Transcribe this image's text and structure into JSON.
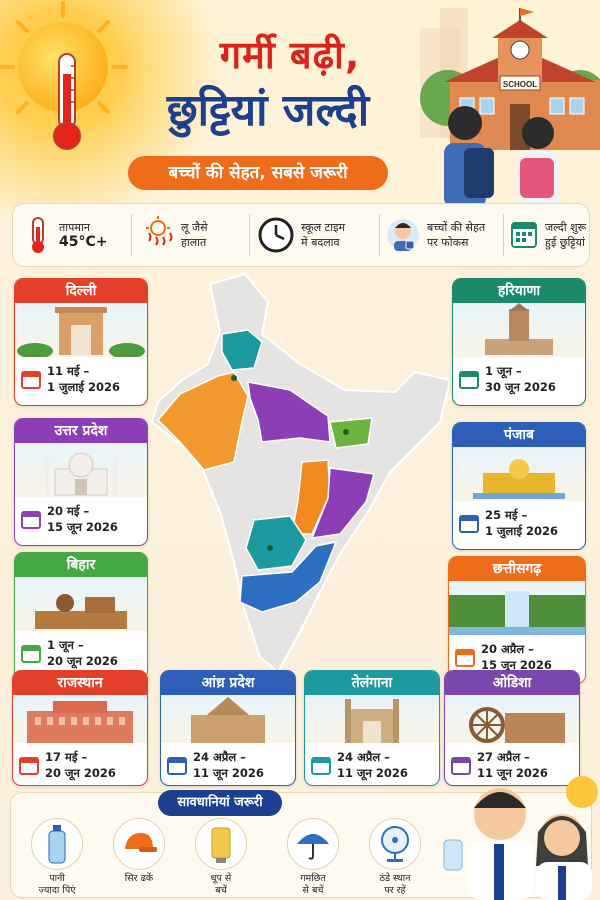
{
  "header": {
    "title_line1": "गर्मी बढ़ी,",
    "title_line2": "छुट्टियां जल्दी",
    "subtitle": "बच्चों की सेहत, सबसे जरूरी",
    "school_sign": "SCHOOL"
  },
  "info_strip": [
    {
      "icon": "thermometer-icon",
      "line1": "तापमान",
      "line2": "45°C+"
    },
    {
      "icon": "heatwave-icon",
      "line1": "लू जैसे",
      "line2": "हालात"
    },
    {
      "icon": "clock-icon",
      "line1": "स्कूल टाइम",
      "line2": "में बदलाव"
    },
    {
      "icon": "child-health-icon",
      "line1": "बच्चों की सेहत",
      "line2": "पर फोकस"
    },
    {
      "icon": "calendar-icon",
      "line1": "जल्दी शुरू",
      "line2": "हुई छुट्टियां"
    }
  ],
  "states": [
    {
      "name": "दिल्ली",
      "from": "11 मई –",
      "to": "1 जुलाई 2026",
      "color": "#e2402b"
    },
    {
      "name": "उत्तर प्रदेश",
      "from": "20 मई –",
      "to": "15 जून 2026",
      "color": "#8c3fb4"
    },
    {
      "name": "बिहार",
      "from": "1 जून –",
      "to": "20 जून 2026",
      "color": "#46a844"
    },
    {
      "name": "हरियाणा",
      "from": "1 जून –",
      "to": "30 जून 2026",
      "color": "#1b8a6b"
    },
    {
      "name": "पंजाब",
      "from": "25 मई –",
      "to": "1 जुलाई 2026",
      "color": "#2d5fb8"
    },
    {
      "name": "छत्तीसगढ़",
      "from": "20 अप्रैल –",
      "to": "15 जून 2026",
      "color": "#ef6c1a"
    },
    {
      "name": "राजस्थान",
      "from": "17 मई –",
      "to": "20 जून 2026",
      "color": "#e2402b"
    },
    {
      "name": "आंध्र प्रदेश",
      "from": "24 अप्रैल –",
      "to": "11 जून 2026",
      "color": "#2d5fb8"
    },
    {
      "name": "तेलंगाना",
      "from": "24 अप्रैल –",
      "to": "11 जून 2026",
      "color": "#1c9aa0"
    },
    {
      "name": "ओडिशा",
      "from": "27 अप्रैल –",
      "to": "11 जून 2026",
      "color": "#7a47ae"
    }
  ],
  "precautions": {
    "title": "सावधानियां जरूरी",
    "items": [
      {
        "icon": "water-bottle-icon",
        "line1": "पानी",
        "line2": "ज्यादा पिएं"
      },
      {
        "icon": "cap-icon",
        "line1": "सिर ढकें",
        "line2": ""
      },
      {
        "icon": "sunscreen-icon",
        "line1": "धूप से",
        "line2": "बचें"
      },
      {
        "icon": "umbrella-icon",
        "line1": "गमछित",
        "line2": "से बचें"
      },
      {
        "icon": "fan-icon",
        "line1": "ठंडे स्थान",
        "line2": "पर रहें"
      }
    ]
  },
  "colors": {
    "title_red": "#d9231c",
    "title_blue": "#1d3f8f",
    "accent_orange": "#ef6c1a"
  }
}
